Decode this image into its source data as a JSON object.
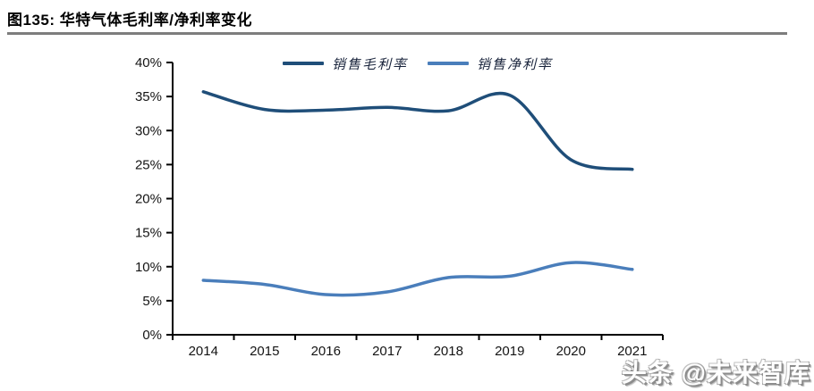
{
  "header": {
    "title": "图135: 华特气体毛利率/净利率变化"
  },
  "watermark": "头条 @未来智库",
  "colors": {
    "gross_margin_line": "#1F4E79",
    "net_margin_line": "#4A7EBB",
    "axis": "#000000",
    "divider": "#7D7D7D"
  },
  "chart_data": {
    "type": "line",
    "title": "华特气体毛利率/净利率变化",
    "categories": [
      "2014",
      "2015",
      "2016",
      "2017",
      "2018",
      "2019",
      "2020",
      "2021"
    ],
    "series": [
      {
        "name": "销售毛利率",
        "color": "#1F4E79",
        "values": [
          35.7,
          33.1,
          33.0,
          33.4,
          32.9,
          35.2,
          25.7,
          24.3
        ]
      },
      {
        "name": "销售净利率",
        "color": "#4A7EBB",
        "values": [
          8.0,
          7.4,
          5.9,
          6.3,
          8.4,
          8.6,
          10.6,
          9.6
        ]
      }
    ],
    "xlabel": "",
    "ylabel": "",
    "ylim": [
      0,
      40
    ],
    "ytick_step": 5,
    "ytick_labels": [
      "0%",
      "5%",
      "10%",
      "15%",
      "20%",
      "25%",
      "30%",
      "35%",
      "40%"
    ],
    "grid": false,
    "smooth": true,
    "legend_position": "top-center"
  }
}
